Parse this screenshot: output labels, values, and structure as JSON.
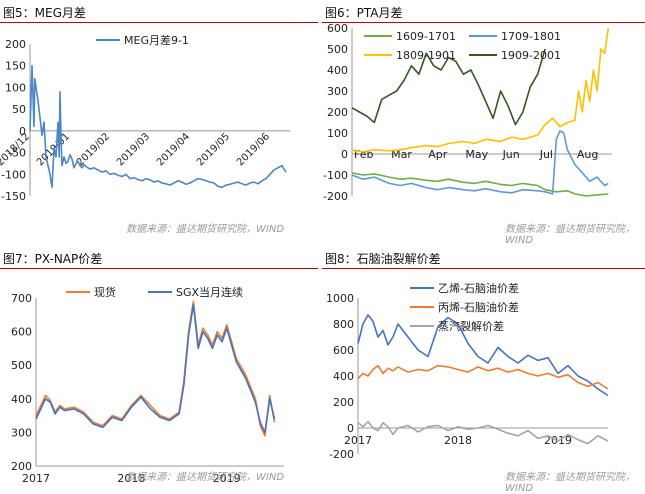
{
  "source_text": "数据来源：盛达期货研究院，WIND",
  "chart_data": [
    {
      "panel_title": "图5：MEG月差",
      "type": "line",
      "xlabel": "",
      "ylabel": "",
      "ylim": [
        -150,
        200
      ],
      "yticks": [
        200,
        150,
        100,
        50,
        0,
        -50,
        -100,
        -150
      ],
      "x_ticks": [
        "2018/12",
        "2019/01",
        "2019/02",
        "2019/03",
        "2019/04",
        "2019/05",
        "2019/06"
      ],
      "legend_position": "top-center",
      "series": [
        {
          "name": "MEG月差9-1",
          "color": "#4a86c8",
          "x": [
            0,
            0.05,
            0.1,
            0.12,
            0.15,
            0.2,
            0.25,
            0.3,
            0.35,
            0.4,
            0.5,
            0.55,
            0.6,
            0.65,
            0.7,
            0.73,
            0.75,
            0.78,
            0.8,
            0.85,
            0.9,
            0.95,
            1.0,
            1.05,
            1.1,
            1.15,
            1.2,
            1.25,
            1.3,
            1.35,
            1.4,
            1.5,
            1.6,
            1.7,
            1.8,
            1.9,
            2.0,
            2.1,
            2.2,
            2.3,
            2.4,
            2.5,
            2.6,
            2.7,
            2.8,
            2.9,
            3.0,
            3.1,
            3.2,
            3.3,
            3.4,
            3.5,
            3.6,
            3.7,
            3.8,
            3.9,
            4.0,
            4.1,
            4.2,
            4.3,
            4.4,
            4.5,
            4.6,
            4.7,
            4.8,
            4.9,
            5.0,
            5.1,
            5.2,
            5.3,
            5.4,
            5.5,
            5.6,
            5.7,
            5.8,
            5.9,
            6.0,
            6.1,
            6.2,
            6.3,
            6.35,
            6.4
          ],
          "values": [
            0,
            150,
            10,
            120,
            100,
            70,
            30,
            -10,
            20,
            -60,
            -100,
            -130,
            -40,
            -60,
            20,
            -60,
            90,
            -30,
            -80,
            -60,
            -75,
            -70,
            -55,
            -65,
            -85,
            -75,
            -70,
            -80,
            -85,
            -78,
            -82,
            -88,
            -85,
            -90,
            -95,
            -92,
            -100,
            -98,
            -102,
            -105,
            -100,
            -110,
            -108,
            -112,
            -115,
            -110,
            -113,
            -118,
            -115,
            -120,
            -122,
            -125,
            -120,
            -115,
            -118,
            -123,
            -120,
            -115,
            -110,
            -112,
            -115,
            -118,
            -120,
            -128,
            -130,
            -125,
            -123,
            -120,
            -118,
            -122,
            -125,
            -120,
            -118,
            -122,
            -115,
            -110,
            -100,
            -90,
            -85,
            -80,
            -88,
            -95
          ]
        }
      ]
    },
    {
      "panel_title": "图6：PTA月差",
      "type": "line",
      "xlabel": "",
      "ylabel": "",
      "ylim": [
        -200,
        600
      ],
      "yticks": [
        600,
        500,
        400,
        300,
        200,
        100,
        0,
        -100,
        -200
      ],
      "x_ticks": [
        "Feb",
        "Mar",
        "Apr",
        "May",
        "Jun",
        "Jul",
        "Aug"
      ],
      "legend_position": "top",
      "series": [
        {
          "name": "1609-1701",
          "color": "#70ad47",
          "x": [
            0,
            0.3,
            0.6,
            1.0,
            1.3,
            1.6,
            2.0,
            2.3,
            2.6,
            3.0,
            3.3,
            3.6,
            4.0,
            4.3,
            4.6,
            5.0,
            5.2,
            5.5,
            5.8,
            6.0,
            6.3,
            6.6,
            6.9
          ],
          "values": [
            -90,
            -100,
            -95,
            -110,
            -120,
            -115,
            -125,
            -130,
            -120,
            -135,
            -140,
            -130,
            -145,
            -150,
            -140,
            -150,
            -170,
            -180,
            -175,
            -190,
            -200,
            -195,
            -190
          ]
        },
        {
          "name": "1709-1801",
          "color": "#5b9bd5",
          "x": [
            0,
            0.3,
            0.6,
            1.0,
            1.3,
            1.6,
            2.0,
            2.3,
            2.6,
            3.0,
            3.3,
            3.6,
            4.0,
            4.3,
            4.6,
            5.0,
            5.2,
            5.4,
            5.5,
            5.6,
            5.7,
            5.8,
            6.0,
            6.2,
            6.4,
            6.6,
            6.8,
            6.9
          ],
          "values": [
            -100,
            -120,
            -110,
            -140,
            -150,
            -140,
            -160,
            -170,
            -160,
            -170,
            -175,
            -165,
            -180,
            -185,
            -170,
            -175,
            -180,
            -190,
            70,
            110,
            100,
            20,
            -50,
            -90,
            -130,
            -110,
            -150,
            -140
          ]
        },
        {
          "name": "1809-1901",
          "color": "#ffc000",
          "x": [
            0,
            0.3,
            0.6,
            1.0,
            1.3,
            1.6,
            2.0,
            2.3,
            2.6,
            3.0,
            3.3,
            3.6,
            4.0,
            4.3,
            4.6,
            5.0,
            5.2,
            5.4,
            5.6,
            5.8,
            6.0,
            6.1,
            6.2,
            6.3,
            6.4,
            6.5,
            6.6,
            6.7,
            6.8,
            6.9
          ],
          "values": [
            20,
            10,
            20,
            15,
            20,
            30,
            40,
            35,
            50,
            60,
            50,
            70,
            60,
            80,
            70,
            90,
            140,
            170,
            130,
            150,
            160,
            300,
            200,
            350,
            250,
            400,
            300,
            500,
            480,
            600
          ]
        },
        {
          "name": "1909-2001",
          "color": "#375623",
          "x": [
            0,
            0.2,
            0.4,
            0.6,
            0.8,
            1.0,
            1.2,
            1.4,
            1.6,
            1.8,
            2.0,
            2.2,
            2.4,
            2.6,
            2.8,
            3.0,
            3.2,
            3.4,
            3.6,
            3.8,
            4.0,
            4.2,
            4.4,
            4.6,
            4.8,
            5.0,
            5.2
          ],
          "values": [
            220,
            200,
            180,
            150,
            260,
            280,
            300,
            350,
            420,
            380,
            480,
            420,
            400,
            460,
            440,
            380,
            400,
            330,
            250,
            170,
            300,
            230,
            140,
            200,
            320,
            380,
            500
          ]
        }
      ]
    },
    {
      "panel_title": "图7：PX-NAP价差",
      "type": "line",
      "xlabel": "",
      "ylabel": "",
      "ylim": [
        200,
        700
      ],
      "yticks": [
        700,
        600,
        500,
        400,
        300,
        200
      ],
      "x_ticks": [
        "2017",
        "2018",
        "2019"
      ],
      "legend_position": "top-left",
      "series": [
        {
          "name": "现货",
          "color": "#ed7d31",
          "x": [
            2017.0,
            2017.05,
            2017.1,
            2017.15,
            2017.2,
            2017.25,
            2017.3,
            2017.4,
            2017.5,
            2017.6,
            2017.7,
            2017.8,
            2017.9,
            2018.0,
            2018.1,
            2018.2,
            2018.3,
            2018.4,
            2018.5,
            2018.55,
            2018.6,
            2018.65,
            2018.7,
            2018.75,
            2018.8,
            2018.85,
            2018.9,
            2018.95,
            2019.0,
            2019.1,
            2019.2,
            2019.3,
            2019.35,
            2019.4,
            2019.45,
            2019.5
          ],
          "values": [
            350,
            380,
            410,
            395,
            360,
            380,
            370,
            375,
            360,
            330,
            320,
            350,
            340,
            380,
            410,
            380,
            350,
            340,
            360,
            450,
            600,
            690,
            560,
            610,
            590,
            560,
            600,
            580,
            620,
            520,
            470,
            400,
            320,
            290,
            410,
            330
          ]
        },
        {
          "name": "SGX当月连续",
          "color": "#4472c4",
          "x": [
            2017.0,
            2017.05,
            2017.1,
            2017.15,
            2017.2,
            2017.25,
            2017.3,
            2017.4,
            2017.5,
            2017.6,
            2017.7,
            2017.8,
            2017.9,
            2018.0,
            2018.1,
            2018.2,
            2018.3,
            2018.4,
            2018.5,
            2018.55,
            2018.6,
            2018.65,
            2018.7,
            2018.75,
            2018.8,
            2018.85,
            2018.9,
            2018.95,
            2019.0,
            2019.1,
            2019.2,
            2019.3,
            2019.35,
            2019.4,
            2019.45,
            2019.5
          ],
          "values": [
            340,
            370,
            400,
            390,
            355,
            375,
            365,
            370,
            355,
            325,
            315,
            345,
            335,
            375,
            405,
            370,
            345,
            335,
            355,
            440,
            590,
            680,
            550,
            600,
            580,
            550,
            590,
            570,
            610,
            510,
            460,
            390,
            330,
            300,
            400,
            340
          ]
        }
      ]
    },
    {
      "panel_title": "图8：石脑油裂解价差",
      "type": "line",
      "xlabel": "",
      "ylabel": "",
      "ylim": [
        -200,
        1000
      ],
      "yticks": [
        1000,
        800,
        600,
        400,
        200,
        0,
        -200
      ],
      "x_ticks": [
        "2017",
        "2018",
        "2019"
      ],
      "legend_position": "top-center",
      "series": [
        {
          "name": "乙烯-石脑油价差",
          "color": "#4472c4",
          "x": [
            2017.0,
            2017.05,
            2017.1,
            2017.15,
            2017.2,
            2017.25,
            2017.3,
            2017.35,
            2017.4,
            2017.5,
            2017.6,
            2017.7,
            2017.8,
            2017.9,
            2018.0,
            2018.1,
            2018.2,
            2018.3,
            2018.4,
            2018.5,
            2018.6,
            2018.7,
            2018.8,
            2018.9,
            2019.0,
            2019.1,
            2019.2,
            2019.3,
            2019.4,
            2019.5
          ],
          "values": [
            650,
            800,
            870,
            820,
            700,
            750,
            640,
            700,
            800,
            700,
            600,
            550,
            780,
            850,
            800,
            650,
            550,
            500,
            620,
            550,
            500,
            560,
            520,
            540,
            420,
            480,
            400,
            360,
            300,
            250
          ]
        },
        {
          "name": "丙烯-石脑油价差",
          "color": "#ed7d31",
          "x": [
            2017.0,
            2017.05,
            2017.1,
            2017.15,
            2017.2,
            2017.25,
            2017.3,
            2017.35,
            2017.4,
            2017.5,
            2017.6,
            2017.7,
            2017.8,
            2017.9,
            2018.0,
            2018.1,
            2018.2,
            2018.3,
            2018.4,
            2018.5,
            2018.6,
            2018.7,
            2018.8,
            2018.9,
            2019.0,
            2019.1,
            2019.2,
            2019.3,
            2019.4,
            2019.5
          ],
          "values": [
            380,
            420,
            400,
            450,
            480,
            420,
            460,
            440,
            470,
            430,
            450,
            440,
            480,
            470,
            450,
            430,
            470,
            440,
            460,
            430,
            450,
            420,
            400,
            420,
            390,
            410,
            350,
            320,
            350,
            300
          ]
        },
        {
          "name": "蒸汽裂解价差",
          "color": "#a5a5a5",
          "x": [
            2017.0,
            2017.05,
            2017.1,
            2017.15,
            2017.2,
            2017.25,
            2017.3,
            2017.35,
            2017.4,
            2017.5,
            2017.6,
            2017.7,
            2017.8,
            2017.9,
            2018.0,
            2018.1,
            2018.2,
            2018.3,
            2018.4,
            2018.5,
            2018.6,
            2018.7,
            2018.8,
            2018.9,
            2019.0,
            2019.1,
            2019.2,
            2019.3,
            2019.4,
            2019.5
          ],
          "values": [
            40,
            10,
            50,
            0,
            -20,
            40,
            10,
            -50,
            0,
            20,
            -30,
            10,
            20,
            -20,
            10,
            -10,
            0,
            20,
            -10,
            -40,
            -60,
            -20,
            -80,
            -60,
            -100,
            -50,
            -90,
            -120,
            -60,
            -100
          ]
        }
      ]
    }
  ]
}
